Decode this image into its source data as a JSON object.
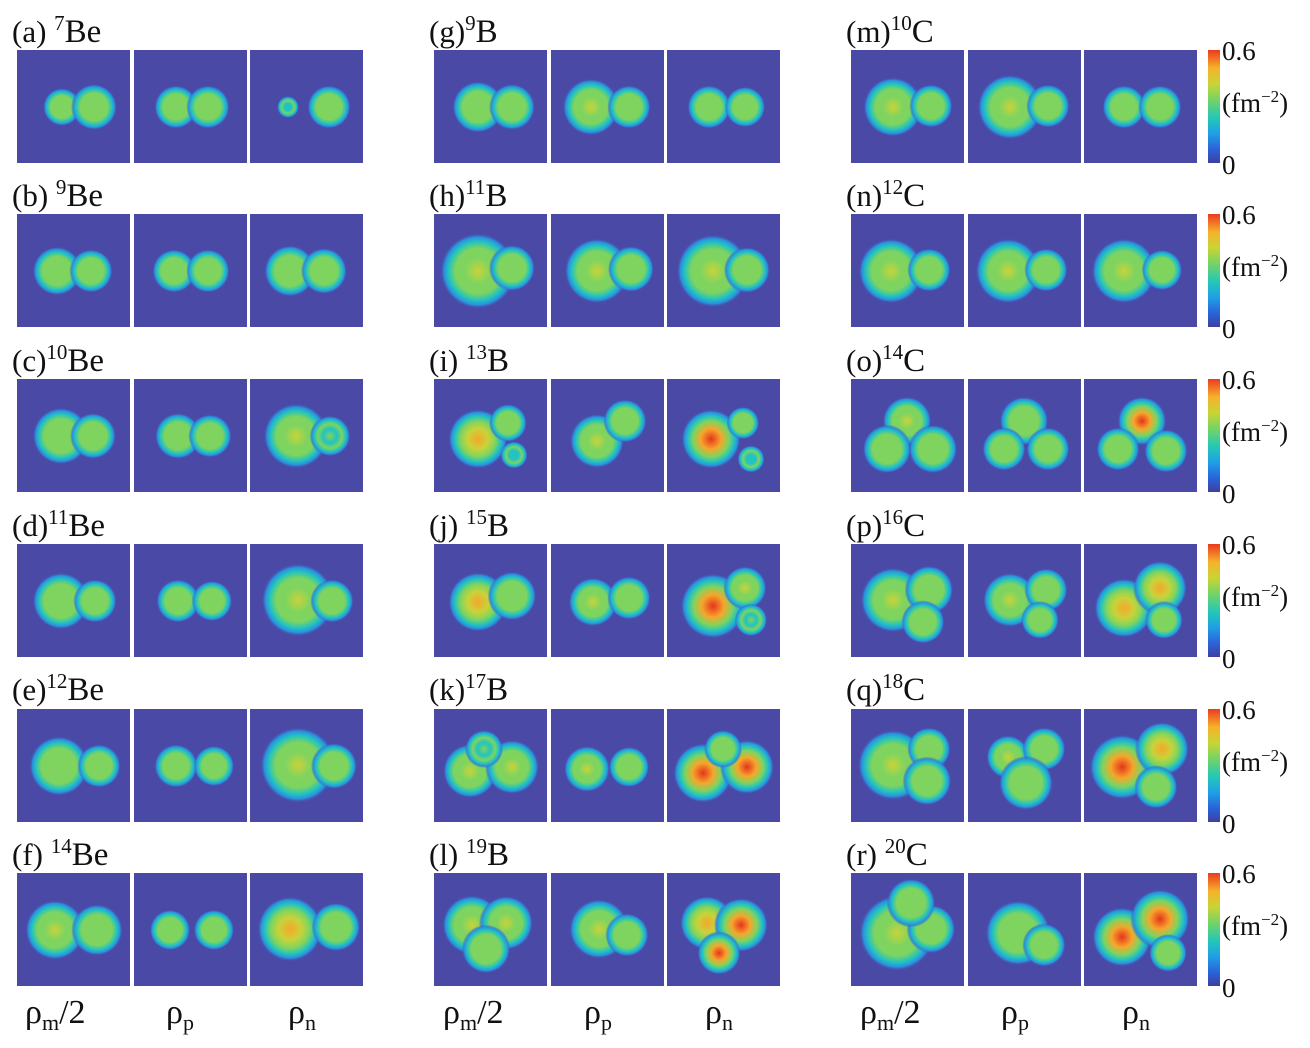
{
  "colorbar": {
    "max": "0.6",
    "unit_main": "(fm",
    "unit_exp": "−2",
    "unit_close": ")",
    "min": "0"
  },
  "xlabels": {
    "rho": "ρ",
    "m_sub": "m",
    "m_tail": "/2",
    "p_sub": "p",
    "n_sub": "n"
  },
  "columns": [
    {
      "rows": [
        {
          "letter": "(a)",
          "mass": "7",
          "element": "Be"
        },
        {
          "letter": "(b)",
          "mass": "9",
          "element": "Be"
        },
        {
          "letter": "(c)",
          "mass": "10",
          "element": "Be"
        },
        {
          "letter": "(d)",
          "mass": "11",
          "element": "Be"
        },
        {
          "letter": "(e)",
          "mass": "12",
          "element": "Be"
        },
        {
          "letter": "(f)",
          "mass": "14",
          "element": "Be"
        }
      ]
    },
    {
      "rows": [
        {
          "letter": "(g)",
          "mass": "9",
          "element": "B"
        },
        {
          "letter": "(h)",
          "mass": "11",
          "element": "B"
        },
        {
          "letter": "(i)",
          "mass": "13",
          "element": "B"
        },
        {
          "letter": "(j)",
          "mass": "15",
          "element": "B"
        },
        {
          "letter": "(k)",
          "mass": "17",
          "element": "B"
        },
        {
          "letter": "(l)",
          "mass": "19",
          "element": "B"
        }
      ]
    },
    {
      "rows": [
        {
          "letter": "(m)",
          "mass": "10",
          "element": "C"
        },
        {
          "letter": "(n)",
          "mass": "12",
          "element": "C"
        },
        {
          "letter": "(o)",
          "mass": "14",
          "element": "C"
        },
        {
          "letter": "(p)",
          "mass": "16",
          "element": "C"
        },
        {
          "letter": "(q)",
          "mass": "18",
          "element": "C"
        },
        {
          "letter": "(r)",
          "mass": "20",
          "element": "C"
        }
      ]
    }
  ]
}
